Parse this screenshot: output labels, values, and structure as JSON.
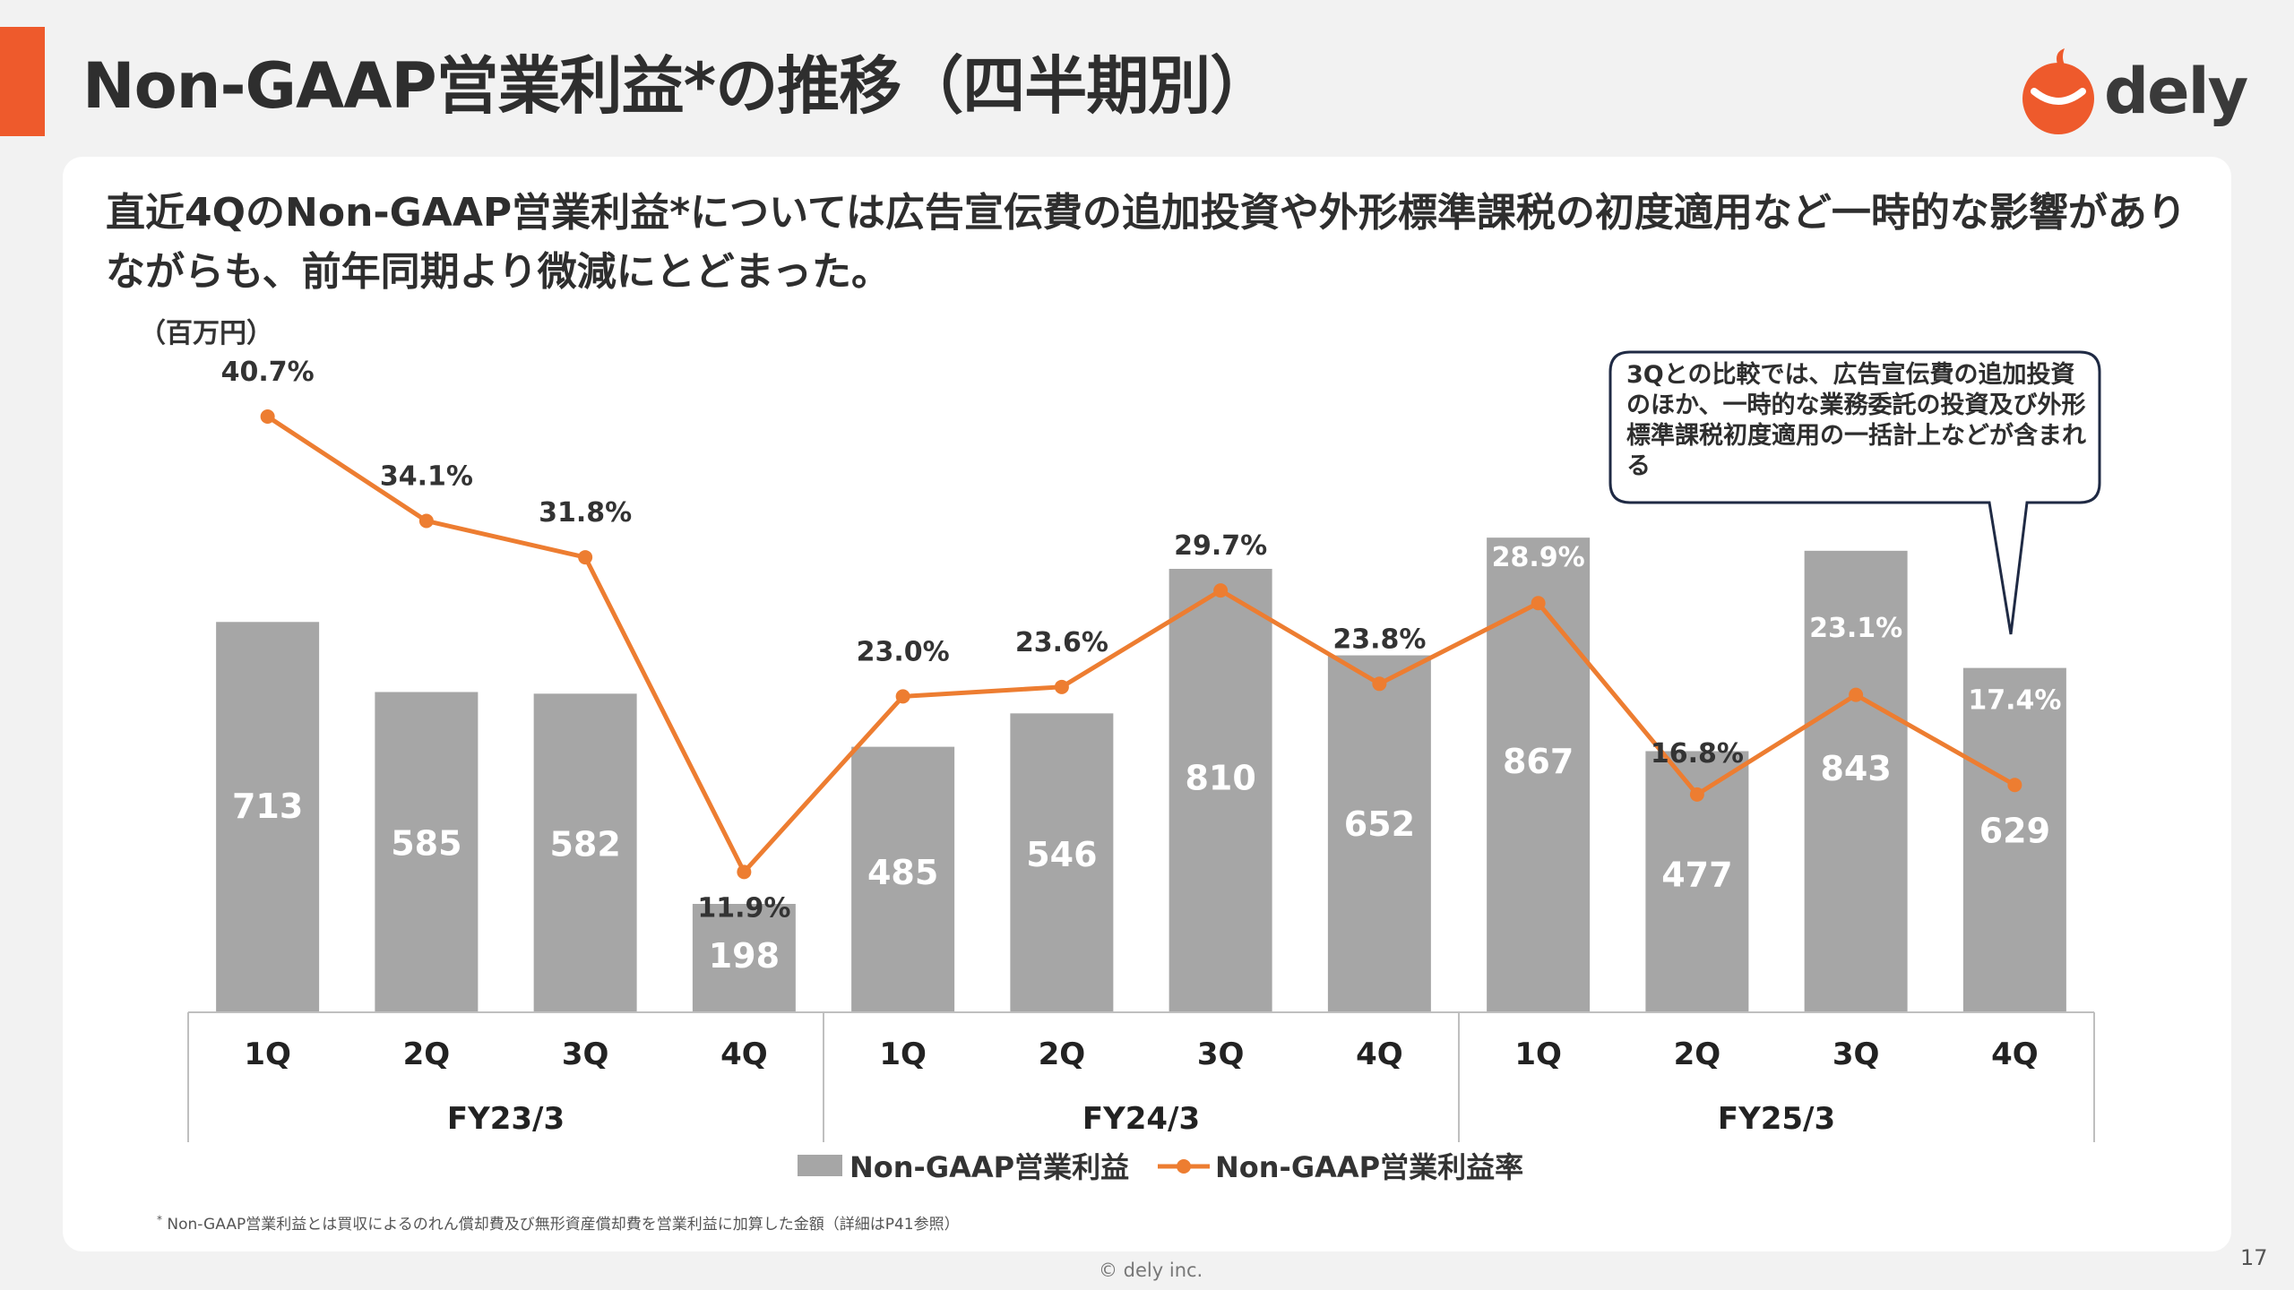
{
  "header": {
    "title": "Non-GAAP営業利益*の推移（四半期別）",
    "logo_text": "dely",
    "accent_color": "#ee5a2c"
  },
  "headline": "直近4QのNon-GAAP営業利益*については広告宣伝費の追加投資や外形標準課税の初度適用など一時的な影響がありながらも、前年同期より微減にとどまった。",
  "callout": "3Qとの比較では、広告宣伝費の追加投資のほか、一時的な業務委託の投資及び外形標準課税初度適用の一括計上などが含まれる",
  "chart_data": {
    "type": "bar",
    "unit_label": "（百万円）",
    "categories": [
      "1Q",
      "2Q",
      "3Q",
      "4Q",
      "1Q",
      "2Q",
      "3Q",
      "4Q",
      "1Q",
      "2Q",
      "3Q",
      "4Q"
    ],
    "groups": [
      {
        "label": "FY23/3",
        "span": 4
      },
      {
        "label": "FY24/3",
        "span": 4
      },
      {
        "label": "FY25/3",
        "span": 4
      }
    ],
    "series": [
      {
        "name": "Non-GAAP営業利益",
        "kind": "bar",
        "color": "#a6a6a6",
        "values": [
          713,
          585,
          582,
          198,
          485,
          546,
          810,
          652,
          867,
          477,
          843,
          629
        ],
        "labels": [
          "713",
          "585",
          "582",
          "198",
          "485",
          "546",
          "810",
          "652",
          "867",
          "477",
          "843",
          "629"
        ]
      },
      {
        "name": "Non-GAAP営業利益率",
        "kind": "line",
        "color": "#ed7d31",
        "values": [
          40.7,
          34.1,
          31.8,
          11.9,
          23.0,
          23.6,
          29.7,
          23.8,
          28.9,
          16.8,
          23.1,
          17.4
        ],
        "labels": [
          "40.7%",
          "34.1%",
          "31.8%",
          "11.9%",
          "23.0%",
          "23.6%",
          "29.7%",
          "23.8%",
          "28.9%",
          "16.8%",
          "23.1%",
          "17.4%"
        ]
      }
    ],
    "bar_ylim": [
      0,
      910
    ],
    "line_ylim": [
      7,
      48
    ],
    "legend_position": "bottom",
    "grid": false
  },
  "footnote": {
    "mark": "*",
    "text": "Non-GAAP営業利益とは買収によるのれん償却費及び無形資産償却費を営業利益に加算した金額（詳細はP41参照）"
  },
  "footer": {
    "copyright": "© dely inc.",
    "page_number": "17"
  }
}
